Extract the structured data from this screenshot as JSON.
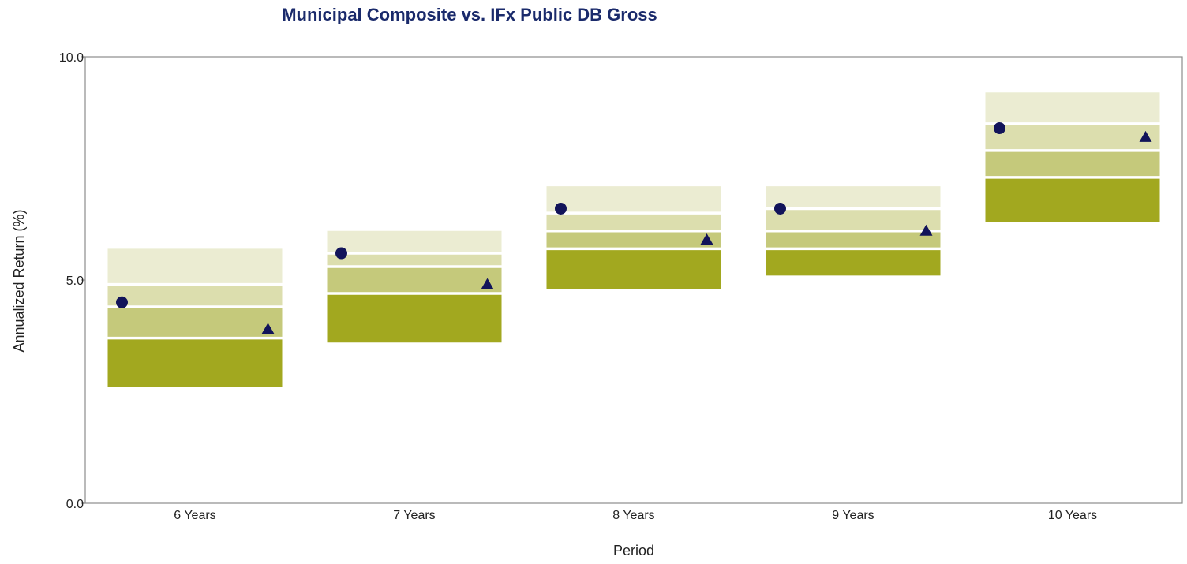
{
  "chart_data": {
    "type": "floating-bar",
    "title": "Municipal Composite vs. IFx Public DB Gross",
    "xlabel": "Period",
    "ylabel": "Annualized Return (%)",
    "ylim": [
      0,
      10
    ],
    "yticks": [
      "0.0",
      "5.0",
      "10.0"
    ],
    "ytick_values": [
      0,
      5,
      10
    ],
    "categories": [
      "6 Years",
      "7 Years",
      "8 Years",
      "9 Years",
      "10 Years"
    ],
    "percentile_ranges": [
      [
        2.6,
        3.7,
        4.4,
        4.9,
        5.7
      ],
      [
        3.6,
        4.7,
        5.3,
        5.6,
        6.1
      ],
      [
        4.8,
        5.7,
        6.1,
        6.5,
        7.1
      ],
      [
        5.1,
        5.7,
        6.1,
        6.6,
        7.1
      ],
      [
        6.3,
        7.3,
        7.9,
        8.5,
        9.2
      ]
    ],
    "series": [
      {
        "name": "",
        "marker": "circle",
        "values": [
          4.5,
          5.6,
          6.6,
          6.6,
          8.4
        ]
      },
      {
        "name": "",
        "marker": "triangle",
        "values": [
          3.9,
          4.9,
          5.9,
          6.1,
          8.2
        ]
      }
    ],
    "colors": {
      "band_bottom": "#a2a81f",
      "band_second": "#c5c97b",
      "band_third": "#dcdeae",
      "band_top": "#ebecd2",
      "median_line": "#ffffff",
      "marker": "#12145a",
      "title": "#1a2a6b",
      "plot_border": "#8c8c8c"
    },
    "grid": false,
    "legend": "none"
  }
}
